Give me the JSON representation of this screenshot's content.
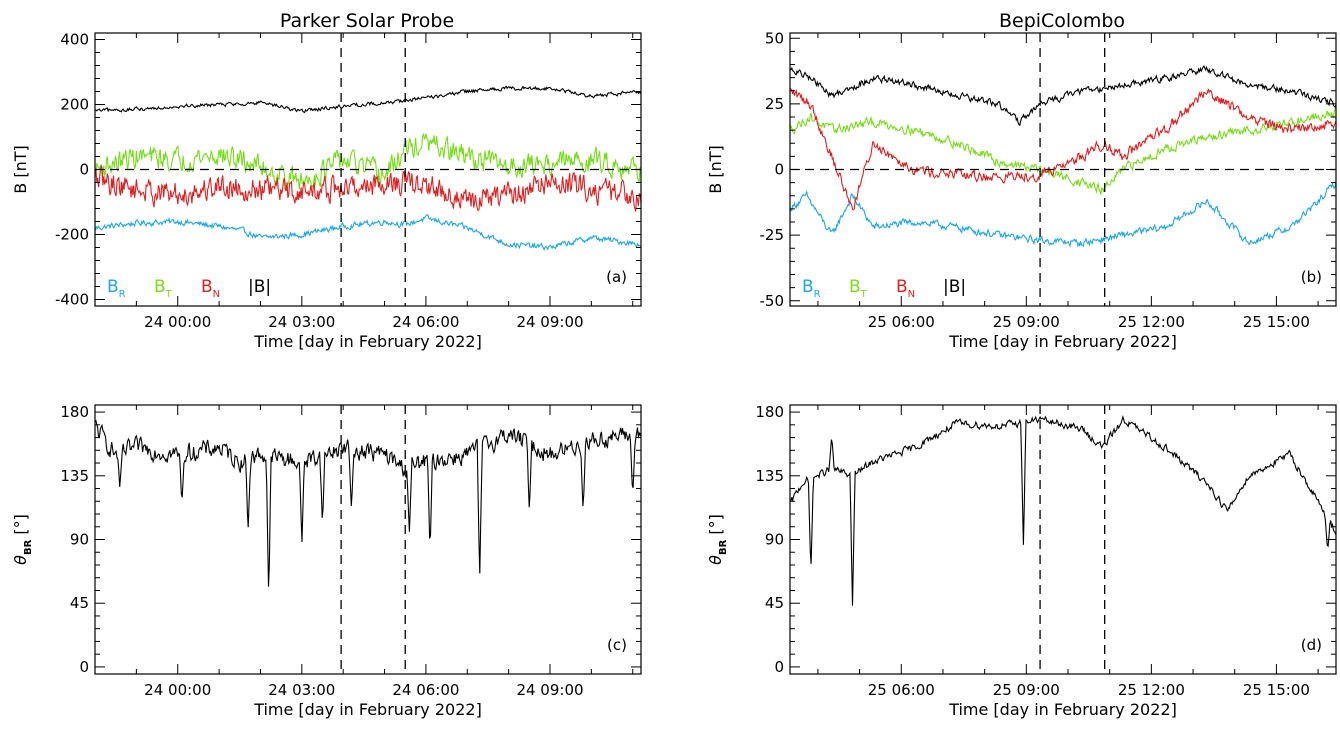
{
  "figure": {
    "left_title": "Parker Solar Probe",
    "right_title": "BepiColombo"
  },
  "chart_data": [
    {
      "type": "line",
      "panel": "a",
      "tag": "(a)",
      "title": "Parker Solar Probe",
      "xlabel": "Time [day in February 2022]",
      "ylabel": "B [nT]",
      "x_unit": "hours from 23 Feb 22:00 UT",
      "xlim": [
        0,
        13.2
      ],
      "ylim": [
        -420,
        420
      ],
      "yticks": [
        -400,
        -200,
        0,
        200,
        400
      ],
      "xticks": [
        {
          "x": 2,
          "label": "24 00:00"
        },
        {
          "x": 5,
          "label": "24 03:00"
        },
        {
          "x": 8,
          "label": "24 06:00"
        },
        {
          "x": 11,
          "label": "24 09:00"
        }
      ],
      "vlines": [
        5.95,
        7.5
      ],
      "zero_line": true,
      "legend": {
        "placement": "bottom-left",
        "entries": [
          {
            "main": "B",
            "sub": "R",
            "color": "#1ea7e8"
          },
          {
            "main": "B",
            "sub": "T",
            "color": "#77dd1a"
          },
          {
            "main": "B",
            "sub": "N",
            "color": "#e02020"
          },
          {
            "main": "|B|",
            "sub": "",
            "color": "#000000"
          }
        ]
      },
      "series": [
        {
          "name": "B_R",
          "color": "#1ea7e8",
          "noise": 14,
          "x": [
            0,
            1,
            2,
            3,
            3.6,
            4,
            5,
            6,
            7,
            7.5,
            8,
            9,
            10,
            11,
            12,
            13.2
          ],
          "y": [
            -180,
            -165,
            -160,
            -175,
            -190,
            -210,
            -200,
            -175,
            -160,
            -170,
            -150,
            -180,
            -230,
            -240,
            -210,
            -230
          ]
        },
        {
          "name": "B_T",
          "color": "#77dd1a",
          "noise": 55,
          "x": [
            0,
            1,
            2,
            3,
            4,
            5,
            6,
            7,
            7.5,
            8,
            9,
            10,
            11,
            12,
            13.2
          ],
          "y": [
            0,
            40,
            30,
            45,
            10,
            -40,
            30,
            -20,
            60,
            80,
            40,
            10,
            20,
            30,
            0
          ]
        },
        {
          "name": "B_N",
          "color": "#e02020",
          "noise": 60,
          "x": [
            0,
            1,
            2,
            3,
            4,
            5,
            6,
            7,
            8,
            9,
            10,
            11,
            12,
            13.2
          ],
          "y": [
            -30,
            -60,
            -80,
            -50,
            -60,
            -70,
            -60,
            -40,
            -50,
            -100,
            -80,
            -40,
            -60,
            -80
          ]
        },
        {
          "name": "|B|",
          "color": "#000000",
          "noise": 9,
          "x": [
            0,
            1,
            2,
            3,
            4,
            5,
            6,
            7,
            8,
            9,
            10,
            11,
            12,
            13.2
          ],
          "y": [
            180,
            185,
            195,
            200,
            205,
            180,
            195,
            205,
            220,
            240,
            250,
            250,
            225,
            240
          ]
        }
      ]
    },
    {
      "type": "line",
      "panel": "b",
      "tag": "(b)",
      "title": "BepiColombo",
      "xlabel": "Time [day in February 2022]",
      "ylabel": "B [nT]",
      "x_unit": "hours from 25 Feb 03:20 UT",
      "xlim": [
        0,
        13.1
      ],
      "ylim": [
        -52,
        52
      ],
      "yticks": [
        -50,
        -25,
        0,
        25,
        50
      ],
      "xticks": [
        {
          "x": 2.67,
          "label": "25 06:00"
        },
        {
          "x": 5.67,
          "label": "25 09:00"
        },
        {
          "x": 8.67,
          "label": "25 12:00"
        },
        {
          "x": 11.67,
          "label": "25 15:00"
        }
      ],
      "vlines": [
        6.0,
        7.55
      ],
      "zero_line": true,
      "legend": {
        "placement": "bottom-left",
        "entries": [
          {
            "main": "B",
            "sub": "R",
            "color": "#1ea7e8"
          },
          {
            "main": "B",
            "sub": "T",
            "color": "#77dd1a"
          },
          {
            "main": "B",
            "sub": "N",
            "color": "#e02020"
          },
          {
            "main": "|B|",
            "sub": "",
            "color": "#000000"
          }
        ]
      },
      "series": [
        {
          "name": "B_R",
          "color": "#1ea7e8",
          "noise": 2.2,
          "x": [
            0,
            0.4,
            1,
            1.5,
            2,
            3,
            4,
            5,
            6,
            7,
            8,
            9,
            10,
            10.5,
            11,
            12,
            12.5,
            13.1
          ],
          "y": [
            -15,
            -10,
            -25,
            -10,
            -22,
            -20,
            -22,
            -25,
            -27,
            -28,
            -25,
            -22,
            -12,
            -20,
            -28,
            -22,
            -15,
            -5
          ]
        },
        {
          "name": "B_T",
          "color": "#77dd1a",
          "noise": 2.8,
          "x": [
            0,
            0.5,
            1,
            2,
            3,
            4,
            5,
            6,
            7,
            7.5,
            8,
            9,
            10,
            11,
            12,
            13.1
          ],
          "y": [
            15,
            20,
            15,
            18,
            15,
            10,
            3,
            0,
            -5,
            -8,
            0,
            8,
            12,
            15,
            18,
            22
          ]
        },
        {
          "name": "B_N",
          "color": "#e02020",
          "noise": 3.2,
          "x": [
            0,
            0.5,
            1,
            1.5,
            2,
            3,
            4,
            5,
            6,
            7,
            7.5,
            8,
            9,
            10,
            11,
            12,
            13.1
          ],
          "y": [
            30,
            25,
            5,
            -15,
            10,
            0,
            -2,
            -3,
            -2,
            5,
            10,
            5,
            15,
            30,
            20,
            15,
            18
          ]
        },
        {
          "name": "|B|",
          "color": "#000000",
          "noise": 2.0,
          "x": [
            0,
            0.5,
            1,
            2,
            3,
            4,
            5,
            5.5,
            6,
            7,
            8,
            9,
            10,
            11,
            12,
            13.1
          ],
          "y": [
            38,
            35,
            28,
            35,
            32,
            28,
            25,
            18,
            25,
            30,
            32,
            35,
            38,
            32,
            30,
            25
          ]
        }
      ]
    },
    {
      "type": "line",
      "panel": "c",
      "tag": "(c)",
      "xlabel": "Time [day in February 2022]",
      "ylabel": "θ_BR [°]",
      "xlim": [
        0,
        13.2
      ],
      "ylim": [
        -5,
        185
      ],
      "yticks": [
        0,
        45,
        90,
        135,
        180
      ],
      "xticks": [
        {
          "x": 2,
          "label": "24 00:00"
        },
        {
          "x": 5,
          "label": "24 03:00"
        },
        {
          "x": 8,
          "label": "24 06:00"
        },
        {
          "x": 11,
          "label": "24 09:00"
        }
      ],
      "vlines": [
        5.95,
        7.5
      ],
      "zero_line": false,
      "series": [
        {
          "name": "theta_BR",
          "color": "#000000",
          "noise": 10,
          "x": [
            0,
            0.5,
            1,
            2,
            3,
            3.5,
            4,
            5,
            6,
            7,
            7.5,
            8,
            9,
            10,
            11,
            12,
            13.2
          ],
          "y": [
            170,
            150,
            155,
            150,
            155,
            145,
            150,
            145,
            155,
            150,
            140,
            145,
            150,
            165,
            150,
            160,
            165
          ],
          "spikes": [
            [
              0.6,
              125
            ],
            [
              2.1,
              115
            ],
            [
              3.7,
              95
            ],
            [
              4.2,
              47
            ],
            [
              5.0,
              85
            ],
            [
              5.5,
              100
            ],
            [
              6.2,
              110
            ],
            [
              7.6,
              95
            ],
            [
              8.1,
              80
            ],
            [
              9.3,
              60
            ],
            [
              10.5,
              110
            ],
            [
              11.8,
              110
            ],
            [
              13.0,
              120
            ]
          ]
        }
      ]
    },
    {
      "type": "line",
      "panel": "d",
      "tag": "(d)",
      "xlabel": "Time [day in February 2022]",
      "ylabel": "θ_BR [°]",
      "xlim": [
        0,
        13.1
      ],
      "ylim": [
        -5,
        185
      ],
      "yticks": [
        0,
        45,
        90,
        135,
        180
      ],
      "xticks": [
        {
          "x": 2.67,
          "label": "25 06:00"
        },
        {
          "x": 5.67,
          "label": "25 09:00"
        },
        {
          "x": 8.67,
          "label": "25 12:00"
        },
        {
          "x": 11.67,
          "label": "25 15:00"
        }
      ],
      "vlines": [
        6.0,
        7.55
      ],
      "zero_line": false,
      "series": [
        {
          "name": "theta_BR",
          "color": "#000000",
          "noise": 4,
          "x": [
            0,
            0.3,
            1,
            1.5,
            2,
            3,
            4,
            5,
            5.5,
            6,
            7,
            7.5,
            8,
            9,
            10,
            10.5,
            11,
            12,
            12.5,
            13.1
          ],
          "y": [
            115,
            130,
            140,
            135,
            145,
            155,
            172,
            170,
            172,
            175,
            168,
            155,
            175,
            155,
            130,
            110,
            135,
            150,
            125,
            95
          ],
          "spikes": [
            [
              0.5,
              65
            ],
            [
              1.5,
              43
            ],
            [
              5.6,
              85
            ],
            [
              1.0,
              163
            ],
            [
              12.9,
              82
            ]
          ]
        }
      ]
    }
  ]
}
